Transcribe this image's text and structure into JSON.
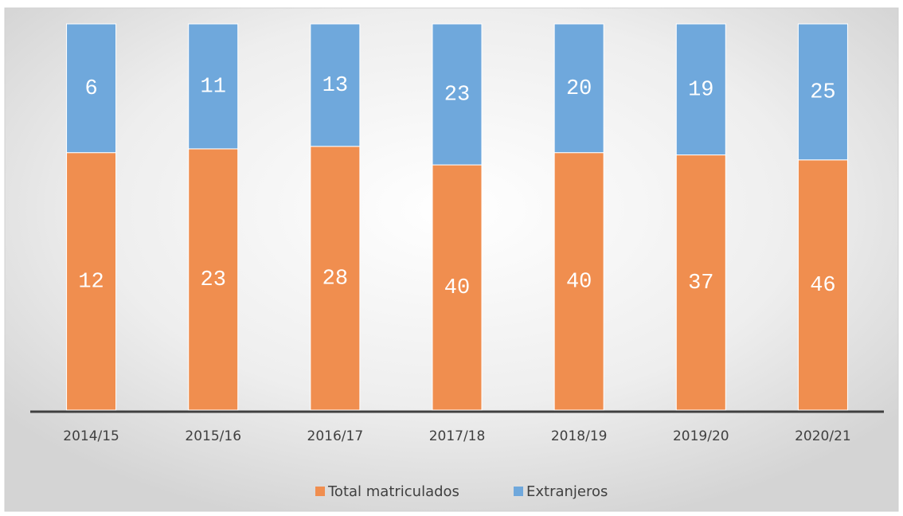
{
  "chart_data": {
    "type": "bar",
    "stacking": "percent",
    "categories": [
      "2014/15",
      "2015/16",
      "2016/17",
      "2017/18",
      "2018/19",
      "2019/20",
      "2020/21"
    ],
    "series": [
      {
        "name": "Total matriculados",
        "color": "#f08e4f",
        "values": [
          12,
          23,
          28,
          40,
          40,
          37,
          46
        ]
      },
      {
        "name": "Extranjeros",
        "color": "#6fa8dc",
        "values": [
          6,
          11,
          13,
          23,
          20,
          19,
          25
        ]
      }
    ],
    "legend": "bottom"
  }
}
